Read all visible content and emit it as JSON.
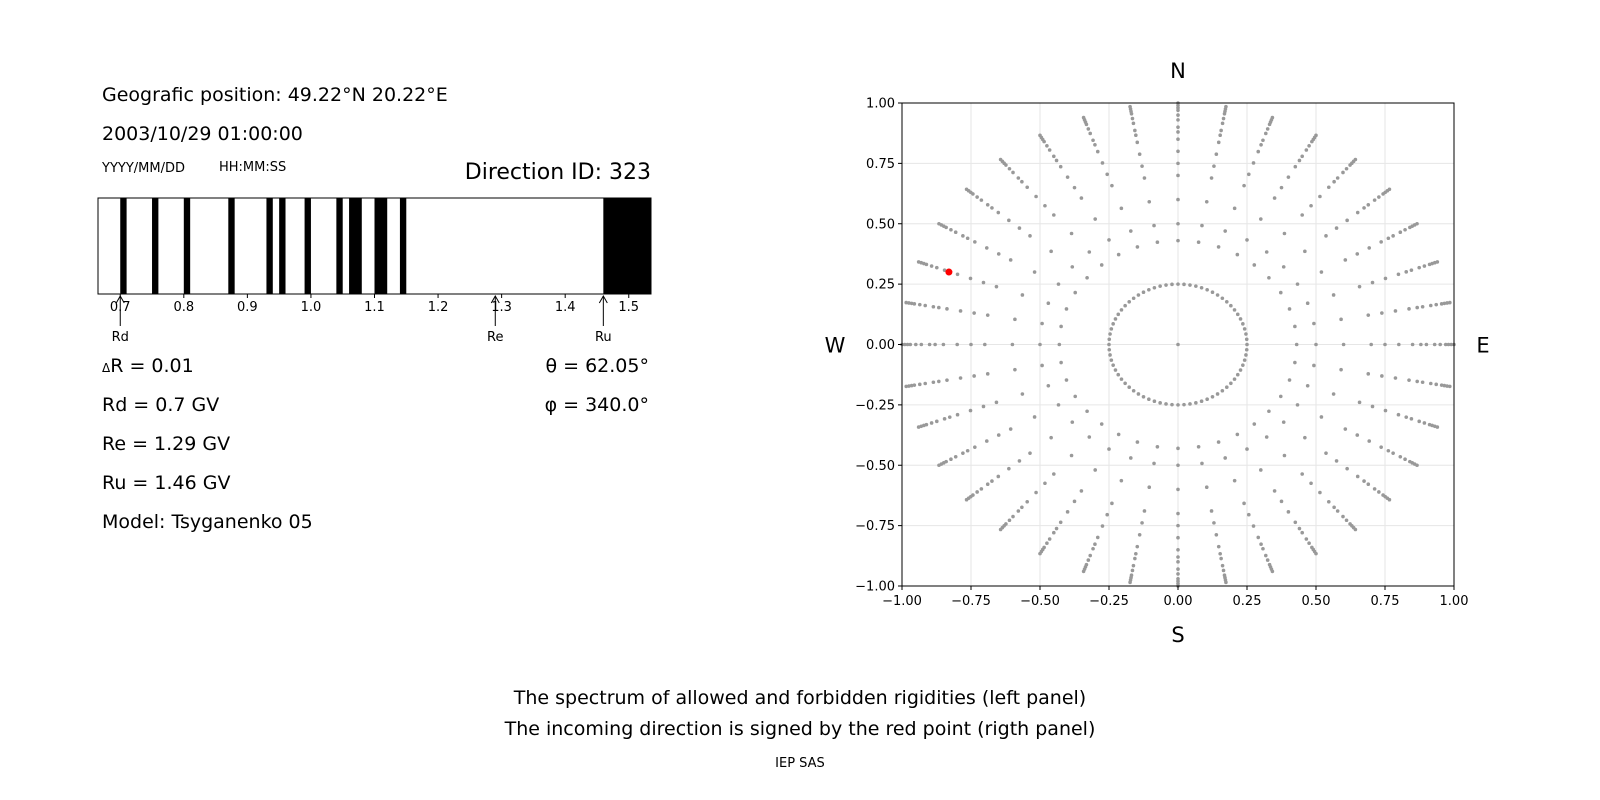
{
  "header": {
    "position": "Geografic position: 49.22°N 20.22°E",
    "datetime": "2003/10/29 01:00:00",
    "date_format": "YYYY/MM/DD",
    "time_format": "HH:MM:SS",
    "direction_id": "Direction ID: 323"
  },
  "params": {
    "delta_r": "R = 0.01",
    "delta_symbol": "Δ",
    "rd": "Rd = 0.7 GV",
    "re": "Re = 1.29 GV",
    "ru": "Ru = 1.46 GV",
    "model": "Model: Tsyganenko 05",
    "theta": "θ = 62.05°",
    "phi": "φ = 340.0°"
  },
  "compass": {
    "north": "N",
    "south": "S",
    "west": "W",
    "east": "E"
  },
  "caption": {
    "line1": "The spectrum of allowed and forbidden rigidities (left panel)",
    "line2": "The incoming direction is signed by the red point (rigth panel)",
    "credit": "IEP SAS"
  },
  "chart_data": [
    {
      "type": "bar",
      "name": "rigidity-spectrum",
      "xlim": [
        0.665,
        1.535
      ],
      "xticks": [
        0.7,
        0.8,
        0.9,
        1.0,
        1.1,
        1.2,
        1.3,
        1.4,
        1.5
      ],
      "forbidden_bands": [
        [
          0.7,
          0.71
        ],
        [
          0.75,
          0.76
        ],
        [
          0.8,
          0.81
        ],
        [
          0.87,
          0.88
        ],
        [
          0.93,
          0.94
        ],
        [
          0.95,
          0.96
        ],
        [
          0.99,
          1.0
        ],
        [
          1.04,
          1.05
        ],
        [
          1.06,
          1.08
        ],
        [
          1.1,
          1.12
        ],
        [
          1.14,
          1.15
        ],
        [
          1.46,
          1.535
        ]
      ],
      "markers": [
        {
          "label": "Rd",
          "value": 0.7
        },
        {
          "label": "Re",
          "value": 1.29
        },
        {
          "label": "Ru",
          "value": 1.46
        }
      ],
      "colors": {
        "forbidden": "#000000",
        "allowed": "#ffffff"
      }
    },
    {
      "type": "scatter",
      "name": "asymptotic-directions",
      "xlim": [
        -1,
        1
      ],
      "ylim": [
        -1,
        1
      ],
      "xticks": [
        -1.0,
        -0.75,
        -0.5,
        -0.25,
        0.0,
        0.25,
        0.5,
        0.75,
        1.0
      ],
      "yticks": [
        -1.0,
        -0.75,
        -0.5,
        -0.25,
        0.0,
        0.25,
        0.5,
        0.75,
        1.0
      ],
      "grid": true,
      "grid_points": {
        "azimuth_step_deg": 10,
        "rings": [
          0.25,
          0.43,
          0.5,
          0.6,
          0.7,
          0.75,
          0.8,
          0.85,
          0.88,
          0.9,
          0.93,
          0.95,
          0.97,
          0.98,
          0.99,
          1.0
        ],
        "color": "#999999"
      },
      "highlight": {
        "x": -0.83,
        "y": 0.3,
        "color": "#ff0000"
      }
    }
  ]
}
